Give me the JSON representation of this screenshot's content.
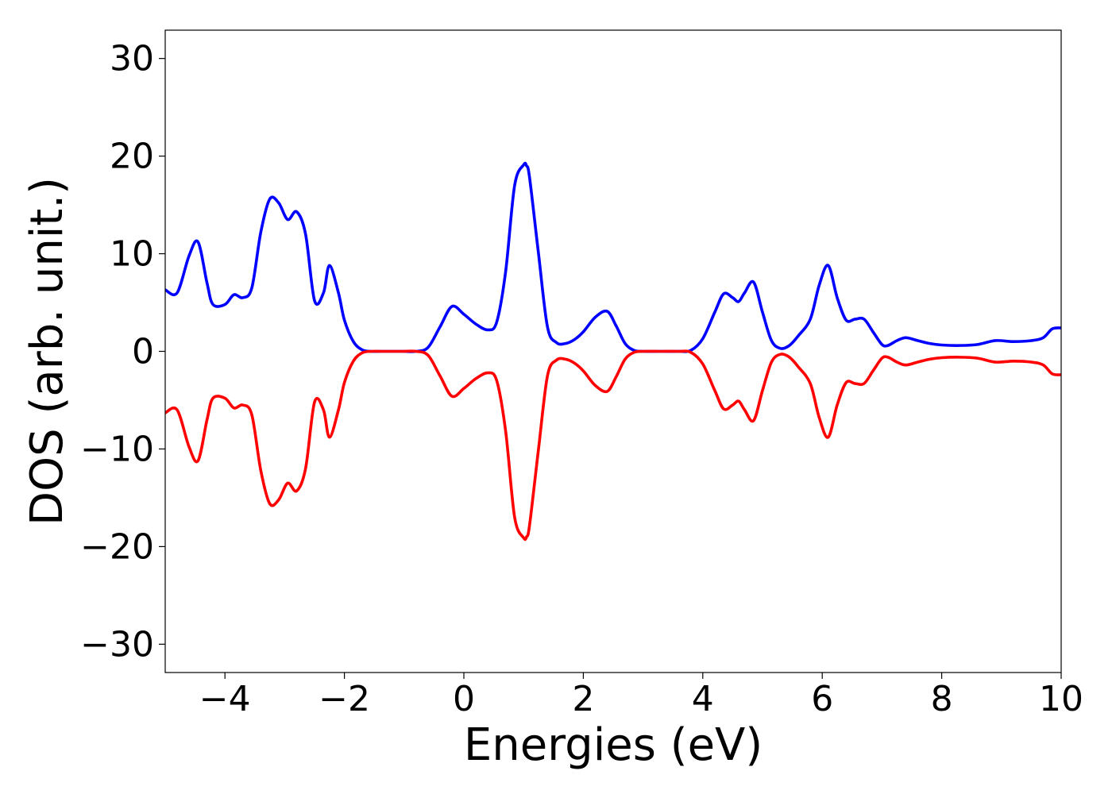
{
  "chart_data": {
    "type": "line",
    "xlabel": "Energies (eV)",
    "ylabel": "DOS (arb. unit.)",
    "xlim": [
      -5,
      10
    ],
    "ylim": [
      -32.9,
      32.9
    ],
    "x_ticks": [
      -4,
      -2,
      0,
      2,
      4,
      6,
      8,
      10
    ],
    "y_ticks": [
      -30,
      -20,
      -10,
      0,
      10,
      20,
      30
    ],
    "x_tick_labels": [
      "−4",
      "−2",
      "0",
      "2",
      "4",
      "6",
      "8",
      "10"
    ],
    "y_tick_labels": [
      "−30",
      "−20",
      "−10",
      "0",
      "10",
      "20",
      "30"
    ],
    "grid": false,
    "legend": "none",
    "x": [
      -5.0,
      -4.8,
      -4.6,
      -4.45,
      -4.3,
      -4.2,
      -4.0,
      -3.85,
      -3.7,
      -3.55,
      -3.4,
      -3.25,
      -3.1,
      -2.95,
      -2.8,
      -2.65,
      -2.5,
      -2.35,
      -2.25,
      -2.1,
      -2.0,
      -1.85,
      -1.7,
      -1.55,
      -1.4,
      -1.25,
      -1.1,
      -1.0,
      -0.8,
      -0.6,
      -0.4,
      -0.2,
      0.0,
      0.2,
      0.4,
      0.55,
      0.7,
      0.85,
      1.0,
      1.05,
      1.1,
      1.25,
      1.4,
      1.55,
      1.7,
      1.85,
      2.0,
      2.2,
      2.4,
      2.55,
      2.7,
      2.85,
      3.0,
      3.3,
      3.6,
      3.8,
      4.0,
      4.2,
      4.35,
      4.5,
      4.6,
      4.7,
      4.85,
      5.0,
      5.15,
      5.3,
      5.45,
      5.6,
      5.8,
      5.95,
      6.1,
      6.25,
      6.4,
      6.55,
      6.7,
      6.85,
      7.0,
      7.1,
      7.25,
      7.4,
      7.6,
      7.8,
      8.0,
      8.3,
      8.6,
      8.9,
      9.2,
      9.5,
      9.7,
      9.85,
      10.0
    ],
    "series": [
      {
        "color": "#0000ff",
        "values": [
          6.3,
          6.0,
          9.8,
          11.2,
          7.0,
          4.8,
          4.8,
          5.8,
          5.5,
          6.5,
          12.2,
          15.6,
          15.2,
          13.5,
          14.3,
          12.0,
          5.2,
          6.0,
          8.8,
          6.0,
          3.2,
          1.0,
          0.15,
          0.0,
          0.0,
          0.0,
          0.0,
          0.0,
          0.0,
          0.4,
          2.5,
          4.6,
          3.8,
          2.8,
          2.2,
          3.0,
          8.2,
          17.0,
          19.1,
          19.0,
          17.8,
          10.0,
          2.5,
          0.9,
          0.8,
          1.2,
          2.0,
          3.5,
          4.1,
          2.6,
          0.8,
          0.1,
          0.0,
          0.0,
          0.0,
          0.1,
          1.3,
          4.0,
          5.9,
          5.5,
          5.1,
          6.0,
          7.1,
          4.0,
          1.1,
          0.3,
          0.6,
          1.6,
          3.3,
          6.8,
          8.8,
          5.5,
          3.2,
          3.3,
          3.3,
          2.0,
          0.7,
          0.6,
          1.1,
          1.4,
          1.1,
          0.8,
          0.65,
          0.6,
          0.7,
          1.1,
          1.0,
          1.1,
          1.4,
          2.3,
          2.4
        ]
      },
      {
        "color": "#ff0000",
        "values": [
          -6.3,
          -6.0,
          -9.8,
          -11.2,
          -7.0,
          -4.8,
          -4.8,
          -5.8,
          -5.5,
          -6.5,
          -12.2,
          -15.6,
          -15.2,
          -13.5,
          -14.3,
          -12.0,
          -5.2,
          -6.0,
          -8.8,
          -6.0,
          -3.2,
          -1.0,
          -0.15,
          0.0,
          0.0,
          0.0,
          0.0,
          0.0,
          0.0,
          -0.4,
          -2.5,
          -4.6,
          -3.8,
          -2.8,
          -2.2,
          -3.0,
          -8.2,
          -17.0,
          -19.1,
          -19.0,
          -17.8,
          -10.0,
          -2.5,
          -0.9,
          -0.8,
          -1.2,
          -2.0,
          -3.5,
          -4.1,
          -2.6,
          -0.8,
          -0.1,
          0.0,
          0.0,
          0.0,
          -0.1,
          -1.3,
          -4.0,
          -5.9,
          -5.5,
          -5.1,
          -6.0,
          -7.1,
          -4.0,
          -1.1,
          -0.3,
          -0.6,
          -1.6,
          -3.3,
          -6.8,
          -8.8,
          -5.5,
          -3.2,
          -3.3,
          -3.3,
          -2.0,
          -0.7,
          -0.6,
          -1.1,
          -1.4,
          -1.1,
          -0.8,
          -0.65,
          -0.6,
          -0.7,
          -1.1,
          -1.0,
          -1.1,
          -1.4,
          -2.3,
          -2.4
        ]
      }
    ]
  }
}
